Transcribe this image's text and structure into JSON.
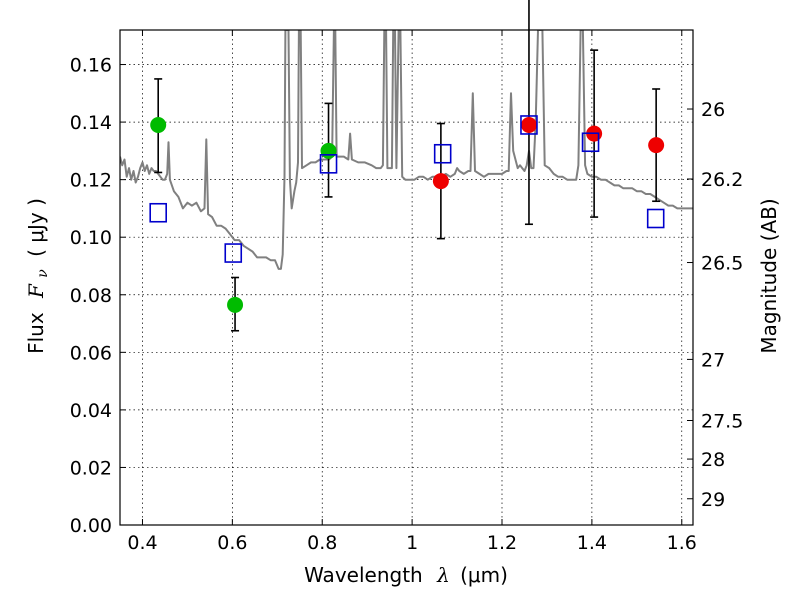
{
  "chart_data": {
    "type": "scatter",
    "xlabel": {
      "prefix": "Wavelength",
      "symbol": "λ",
      "unit": "(μm)"
    },
    "ylabel": {
      "prefix": "Flux",
      "symbol": "F",
      "subscript": "ν",
      "unit": "( μJy )"
    },
    "y2label": "Magnitude (AB)",
    "xlim": [
      0.35,
      1.625
    ],
    "ylim": [
      0.0,
      0.172
    ],
    "grid": true,
    "x_ticks": [
      {
        "value": 0.4,
        "label": "0.4"
      },
      {
        "value": 0.6,
        "label": "0.6"
      },
      {
        "value": 0.8,
        "label": "0.8"
      },
      {
        "value": 1.0,
        "label": "1"
      },
      {
        "value": 1.2,
        "label": "1.2"
      },
      {
        "value": 1.4,
        "label": "1.4"
      },
      {
        "value": 1.6,
        "label": "1.6"
      }
    ],
    "y_ticks": [
      {
        "value": 0.0,
        "label": "0.00"
      },
      {
        "value": 0.02,
        "label": "0.02"
      },
      {
        "value": 0.04,
        "label": "0.04"
      },
      {
        "value": 0.06,
        "label": "0.06"
      },
      {
        "value": 0.08,
        "label": "0.08"
      },
      {
        "value": 0.1,
        "label": "0.10"
      },
      {
        "value": 0.12,
        "label": "0.12"
      },
      {
        "value": 0.14,
        "label": "0.14"
      },
      {
        "value": 0.16,
        "label": "0.16"
      }
    ],
    "y2_ticks": [
      {
        "mag": 26,
        "label": "26"
      },
      {
        "mag": 26.2,
        "label": "26.2"
      },
      {
        "mag": 26.5,
        "label": "26.5"
      },
      {
        "mag": 27,
        "label": "27"
      },
      {
        "mag": 27.5,
        "label": "27.5"
      },
      {
        "mag": 28,
        "label": "28"
      },
      {
        "mag": 29,
        "label": "29"
      }
    ],
    "series": [
      {
        "kind": "observed-green",
        "color": "#00bb00",
        "points": [
          {
            "x": 0.435,
            "y": 0.139,
            "yerr_lo": 0.0165,
            "yerr_hi": 0.016
          },
          {
            "x": 0.606,
            "y": 0.0765,
            "yerr_lo": 0.009,
            "yerr_hi": 0.0095
          },
          {
            "x": 0.814,
            "y": 0.13,
            "yerr_lo": 0.016,
            "yerr_hi": 0.0165
          }
        ]
      },
      {
        "kind": "observed-red",
        "color": "#ee0000",
        "points": [
          {
            "x": 1.064,
            "y": 0.1195,
            "yerr_lo": 0.02,
            "yerr_hi": 0.02
          },
          {
            "x": 1.26,
            "y": 0.139,
            "yerr_lo": 0.0345,
            "yerr_hi": 0.046
          },
          {
            "x": 1.405,
            "y": 0.136,
            "yerr_lo": 0.029,
            "yerr_hi": 0.029
          },
          {
            "x": 1.543,
            "y": 0.132,
            "yerr_lo": 0.0195,
            "yerr_hi": 0.0195
          }
        ]
      },
      {
        "kind": "model-synthetic",
        "color": "#0000cc",
        "points": [
          {
            "x": 0.435,
            "y": 0.1085
          },
          {
            "x": 0.602,
            "y": 0.0945
          },
          {
            "x": 0.814,
            "y": 0.1255
          },
          {
            "x": 1.068,
            "y": 0.129
          },
          {
            "x": 1.26,
            "y": 0.139
          },
          {
            "x": 1.397,
            "y": 0.133
          },
          {
            "x": 1.542,
            "y": 0.1065
          }
        ]
      }
    ],
    "spectrum": {
      "color": "#808080",
      "points": [
        [
          0.35,
          0.128
        ],
        [
          0.355,
          0.125
        ],
        [
          0.36,
          0.127
        ],
        [
          0.365,
          0.121
        ],
        [
          0.37,
          0.124
        ],
        [
          0.375,
          0.12
        ],
        [
          0.38,
          0.123
        ],
        [
          0.385,
          0.119
        ],
        [
          0.39,
          0.121
        ],
        [
          0.395,
          0.124
        ],
        [
          0.4,
          0.126
        ],
        [
          0.405,
          0.123
        ],
        [
          0.41,
          0.125
        ],
        [
          0.415,
          0.122
        ],
        [
          0.42,
          0.124
        ],
        [
          0.425,
          0.123
        ],
        [
          0.43,
          0.123
        ],
        [
          0.435,
          0.122
        ],
        [
          0.44,
          0.121
        ],
        [
          0.445,
          0.12
        ],
        [
          0.45,
          0.12
        ],
        [
          0.455,
          0.122
        ],
        [
          0.458,
          0.133
        ],
        [
          0.461,
          0.12
        ],
        [
          0.47,
          0.116
        ],
        [
          0.48,
          0.114
        ],
        [
          0.49,
          0.11
        ],
        [
          0.5,
          0.112
        ],
        [
          0.51,
          0.111
        ],
        [
          0.52,
          0.112
        ],
        [
          0.53,
          0.109
        ],
        [
          0.538,
          0.11
        ],
        [
          0.542,
          0.134
        ],
        [
          0.546,
          0.108
        ],
        [
          0.555,
          0.107
        ],
        [
          0.565,
          0.104
        ],
        [
          0.575,
          0.104
        ],
        [
          0.585,
          0.103
        ],
        [
          0.595,
          0.101
        ],
        [
          0.605,
          0.099
        ],
        [
          0.615,
          0.099
        ],
        [
          0.625,
          0.097
        ],
        [
          0.635,
          0.096
        ],
        [
          0.645,
          0.095
        ],
        [
          0.655,
          0.093
        ],
        [
          0.665,
          0.093
        ],
        [
          0.675,
          0.093
        ],
        [
          0.685,
          0.092
        ],
        [
          0.695,
          0.092
        ],
        [
          0.703,
          0.089
        ],
        [
          0.708,
          0.089
        ],
        [
          0.712,
          0.094
        ],
        [
          0.716,
          0.121
        ],
        [
          0.718,
          0.172
        ],
        [
          0.725,
          0.172
        ],
        [
          0.728,
          0.12
        ],
        [
          0.732,
          0.11
        ],
        [
          0.738,
          0.116
        ],
        [
          0.742,
          0.119
        ],
        [
          0.746,
          0.126
        ],
        [
          0.748,
          0.172
        ],
        [
          0.752,
          0.172
        ],
        [
          0.755,
          0.124
        ],
        [
          0.765,
          0.125
        ],
        [
          0.775,
          0.126
        ],
        [
          0.785,
          0.126
        ],
        [
          0.795,
          0.127
        ],
        [
          0.805,
          0.127
        ],
        [
          0.815,
          0.127
        ],
        [
          0.822,
          0.128
        ],
        [
          0.826,
          0.172
        ],
        [
          0.829,
          0.172
        ],
        [
          0.832,
          0.128
        ],
        [
          0.84,
          0.128
        ],
        [
          0.848,
          0.128
        ],
        [
          0.858,
          0.127
        ],
        [
          0.862,
          0.136
        ],
        [
          0.866,
          0.127
        ],
        [
          0.88,
          0.126
        ],
        [
          0.895,
          0.126
        ],
        [
          0.91,
          0.125
        ],
        [
          0.92,
          0.124
        ],
        [
          0.93,
          0.124
        ],
        [
          0.935,
          0.125
        ],
        [
          0.938,
          0.172
        ],
        [
          0.942,
          0.172
        ],
        [
          0.945,
          0.124
        ],
        [
          0.95,
          0.124
        ],
        [
          0.955,
          0.124
        ],
        [
          0.958,
          0.172
        ],
        [
          0.962,
          0.172
        ],
        [
          0.965,
          0.124
        ],
        [
          0.97,
          0.172
        ],
        [
          0.974,
          0.172
        ],
        [
          0.978,
          0.121
        ],
        [
          0.985,
          0.12
        ],
        [
          0.995,
          0.12
        ],
        [
          1.005,
          0.12
        ],
        [
          1.015,
          0.121
        ],
        [
          1.025,
          0.121
        ],
        [
          1.035,
          0.12
        ],
        [
          1.045,
          0.121
        ],
        [
          1.055,
          0.121
        ],
        [
          1.065,
          0.121
        ],
        [
          1.075,
          0.122
        ],
        [
          1.085,
          0.121
        ],
        [
          1.095,
          0.122
        ],
        [
          1.1,
          0.124
        ],
        [
          1.105,
          0.123
        ],
        [
          1.115,
          0.122
        ],
        [
          1.125,
          0.123
        ],
        [
          1.13,
          0.123
        ],
        [
          1.135,
          0.15
        ],
        [
          1.14,
          0.123
        ],
        [
          1.15,
          0.122
        ],
        [
          1.16,
          0.121
        ],
        [
          1.17,
          0.122
        ],
        [
          1.18,
          0.122
        ],
        [
          1.19,
          0.122
        ],
        [
          1.2,
          0.122
        ],
        [
          1.21,
          0.123
        ],
        [
          1.215,
          0.123
        ],
        [
          1.22,
          0.15
        ],
        [
          1.225,
          0.13
        ],
        [
          1.235,
          0.124
        ],
        [
          1.24,
          0.125
        ],
        [
          1.245,
          0.124
        ],
        [
          1.25,
          0.123
        ],
        [
          1.255,
          0.125
        ],
        [
          1.26,
          0.13
        ],
        [
          1.265,
          0.124
        ],
        [
          1.27,
          0.124
        ],
        [
          1.275,
          0.14
        ],
        [
          1.28,
          0.172
        ],
        [
          1.29,
          0.172
        ],
        [
          1.295,
          0.125
        ],
        [
          1.305,
          0.124
        ],
        [
          1.315,
          0.122
        ],
        [
          1.325,
          0.121
        ],
        [
          1.335,
          0.121
        ],
        [
          1.345,
          0.12
        ],
        [
          1.355,
          0.12
        ],
        [
          1.365,
          0.12
        ],
        [
          1.37,
          0.125
        ],
        [
          1.375,
          0.172
        ],
        [
          1.38,
          0.172
        ],
        [
          1.385,
          0.125
        ],
        [
          1.39,
          0.122
        ],
        [
          1.4,
          0.121
        ],
        [
          1.41,
          0.121
        ],
        [
          1.42,
          0.12
        ],
        [
          1.43,
          0.12
        ],
        [
          1.44,
          0.119
        ],
        [
          1.45,
          0.118
        ],
        [
          1.46,
          0.118
        ],
        [
          1.47,
          0.117
        ],
        [
          1.48,
          0.117
        ],
        [
          1.49,
          0.117
        ],
        [
          1.5,
          0.116
        ],
        [
          1.51,
          0.116
        ],
        [
          1.52,
          0.115
        ],
        [
          1.53,
          0.115
        ],
        [
          1.54,
          0.114
        ],
        [
          1.55,
          0.113
        ],
        [
          1.56,
          0.112
        ],
        [
          1.57,
          0.111
        ],
        [
          1.58,
          0.111
        ],
        [
          1.59,
          0.11
        ],
        [
          1.6,
          0.11
        ],
        [
          1.61,
          0.11
        ],
        [
          1.625,
          0.11
        ]
      ]
    }
  }
}
